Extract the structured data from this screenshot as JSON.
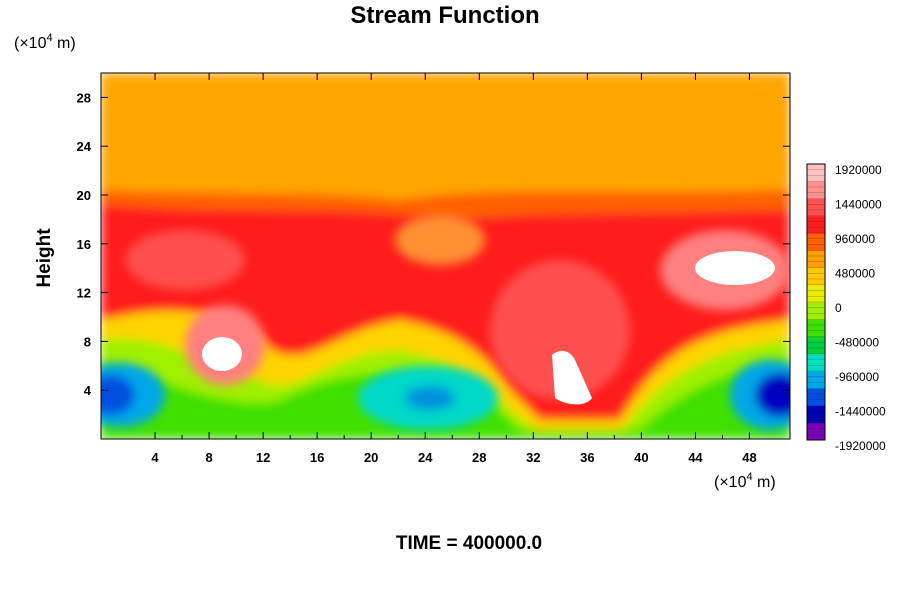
{
  "chart_data": {
    "type": "heatmap",
    "title": "Stream Function",
    "ylabel": "Height",
    "x_unit_prefix": "(×10",
    "x_unit_exp": "4",
    "x_unit_suffix": " m)",
    "y_unit_prefix": "(×10",
    "y_unit_exp": "4",
    "y_unit_suffix": " m)",
    "xlim": [
      0,
      51
    ],
    "ylim": [
      0,
      30
    ],
    "xticks": [
      4,
      8,
      12,
      16,
      20,
      24,
      28,
      32,
      36,
      40,
      44,
      48
    ],
    "yticks": [
      4,
      8,
      12,
      16,
      20,
      24,
      28
    ],
    "colorbar": {
      "min": -1920000,
      "max": 1920000,
      "step": 480000,
      "tick_values": [
        1920000,
        1440000,
        960000,
        480000,
        0,
        -480000,
        -960000,
        -1440000,
        -1920000
      ],
      "tick_labels": [
        "1920000",
        "1440000",
        "960000",
        "480000",
        "0",
        "-480000",
        "-960000",
        "-1440000",
        "-1920000"
      ],
      "colors": [
        "#7a00b8",
        "#0000b4",
        "#0050e0",
        "#00a8e8",
        "#00e0c0",
        "#00d040",
        "#40e000",
        "#a0f000",
        "#e8f000",
        "#ffc800",
        "#ffa000",
        "#ff6000",
        "#ff1e1e",
        "#ff5050",
        "#ff9090",
        "#ffc0c0"
      ]
    },
    "features": [
      {
        "label": "background_orange",
        "x": 25,
        "y": 25,
        "value": 1100000
      },
      {
        "label": "red_band",
        "x": 25,
        "y": 14,
        "value": 1650000
      },
      {
        "label": "white_max_left",
        "x": 9,
        "y": 7,
        "value": 2100000
      },
      {
        "label": "white_max_mid",
        "x": 34,
        "y": 4.5,
        "value": 2100000
      },
      {
        "label": "white_max_right",
        "x": 47,
        "y": 14,
        "value": 2100000
      },
      {
        "label": "blue_min_left",
        "x": 1,
        "y": 3.5,
        "value": -1500000
      },
      {
        "label": "blue_min_mid",
        "x": 24.5,
        "y": 3.5,
        "value": -900000
      },
      {
        "label": "blue_min_right",
        "x": 50,
        "y": 3.5,
        "value": -1500000
      }
    ]
  },
  "footer": {
    "time_label": "TIME = 400000.0"
  }
}
